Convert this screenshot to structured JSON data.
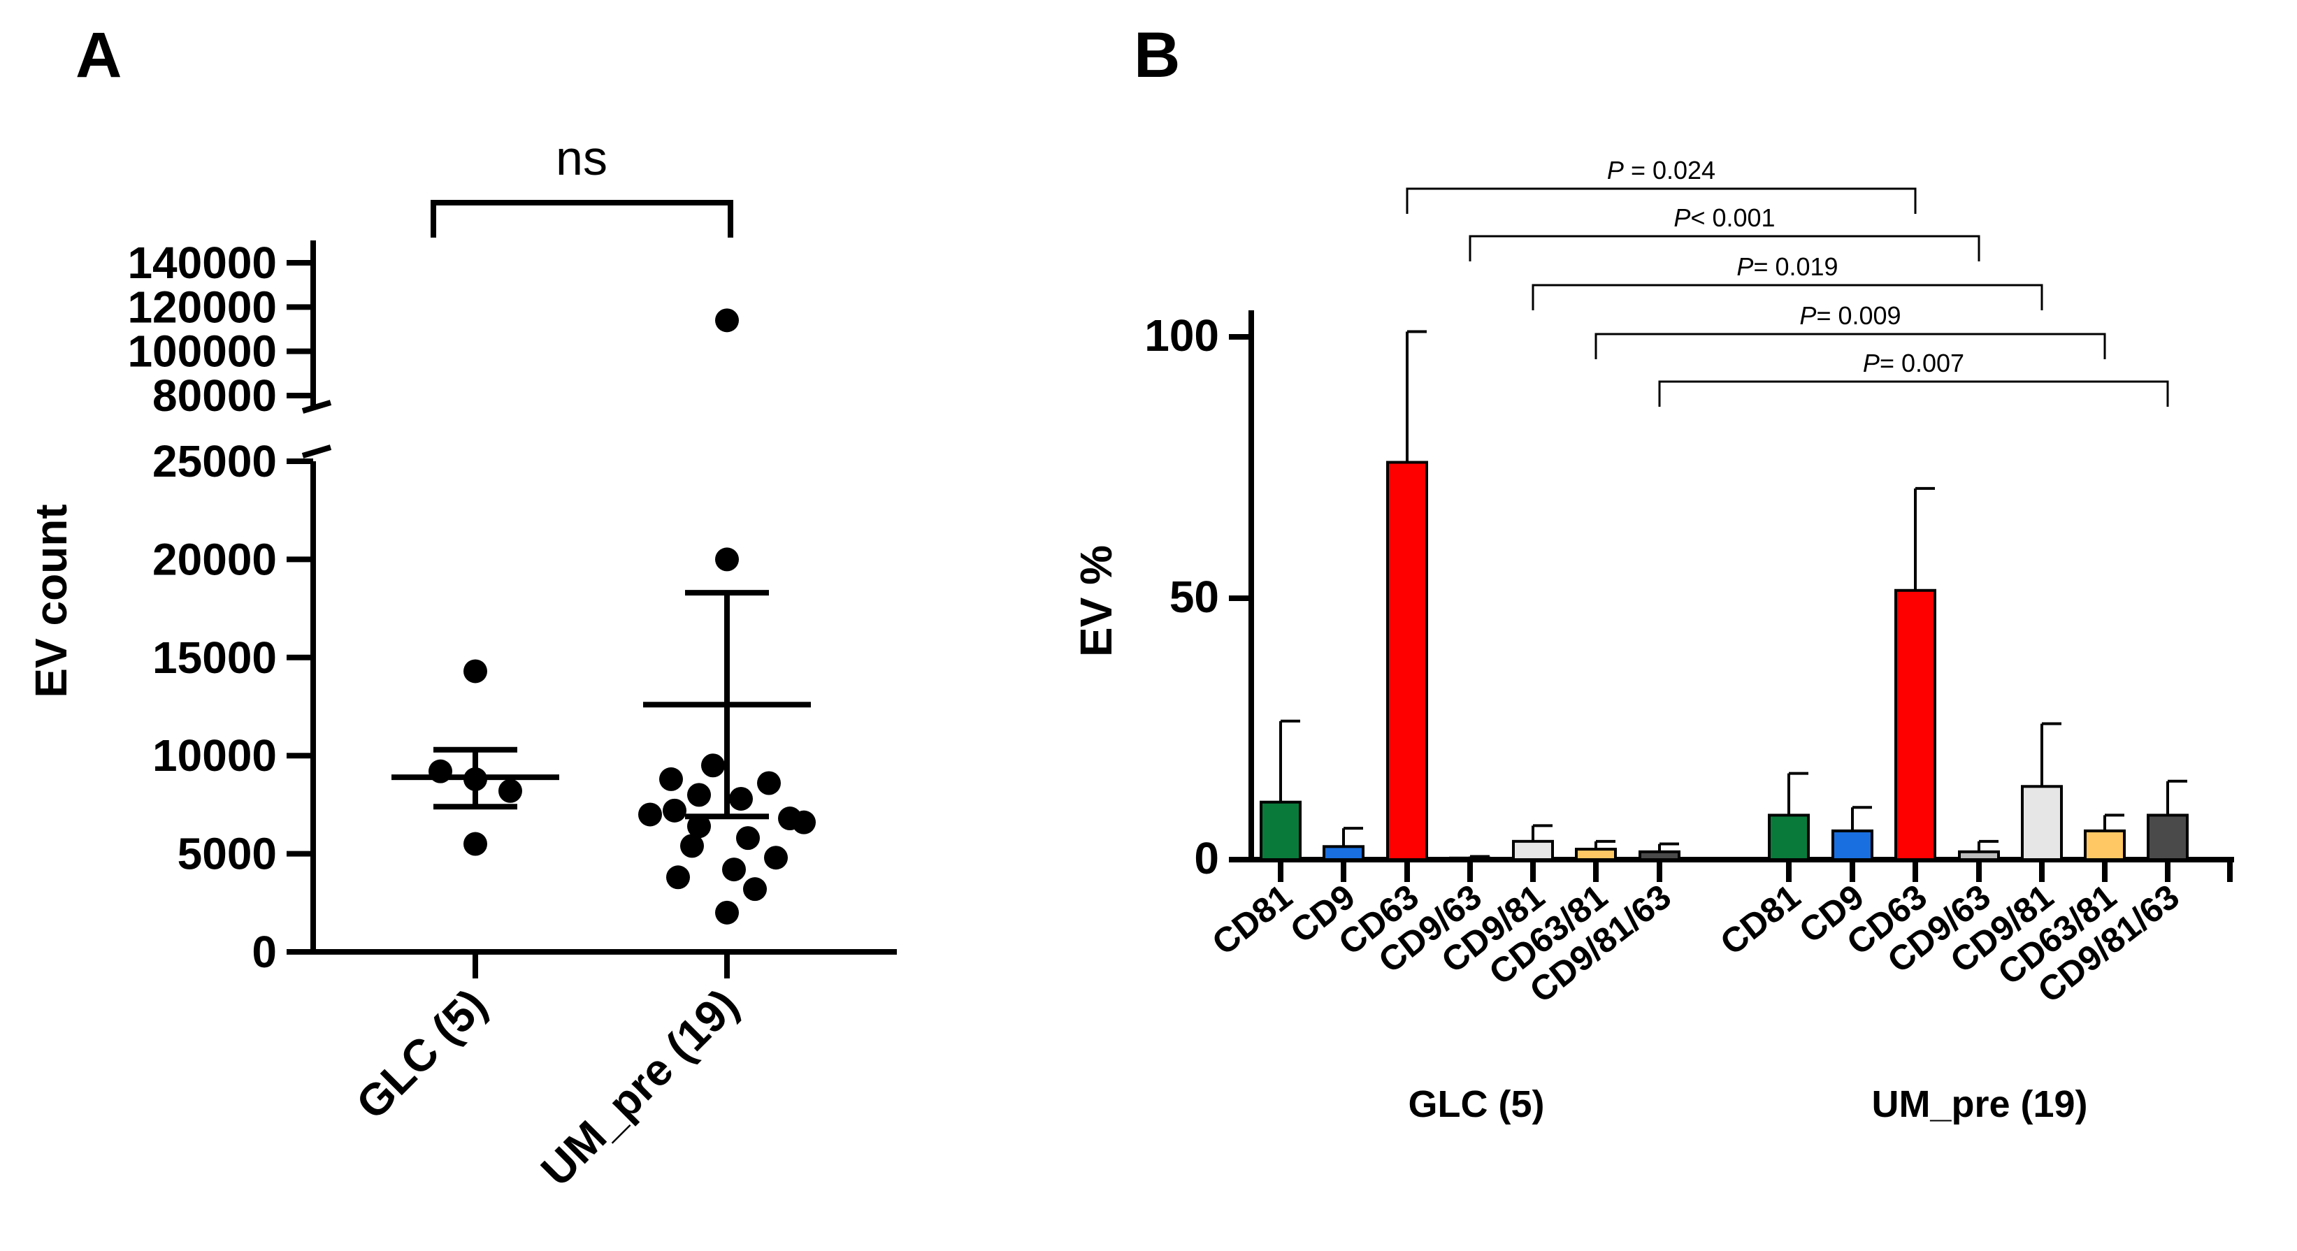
{
  "panels": {
    "a_label": "A",
    "b_label": "B"
  },
  "chart_data": [
    {
      "type": "scatter",
      "panel": "A",
      "title": "",
      "xlabel": "",
      "ylabel": "EV count",
      "y_ticks_lower": [
        "0",
        "5000",
        "10000",
        "15000",
        "20000",
        "25000"
      ],
      "y_ticks_upper": [
        "80000",
        "100000",
        "120000",
        "140000"
      ],
      "y_axis_break": [
        25000,
        80000
      ],
      "ylim": [
        0,
        140000
      ],
      "significance": {
        "label": "ns"
      },
      "groups": [
        {
          "name": "GLC (5)",
          "points": [
            14300,
            9200,
            8800,
            8200,
            5500
          ],
          "mean": 8900,
          "sem_low": 7400,
          "sem_high": 10300
        },
        {
          "name": "UM_pre (19)",
          "points": [
            114000,
            20000,
            9500,
            8800,
            8600,
            8000,
            7800,
            7200,
            7000,
            6800,
            6600,
            6400,
            5800,
            5400,
            4800,
            4200,
            3800,
            3200,
            2000
          ],
          "mean": 12600,
          "sem_low": 6900,
          "sem_high": 18300
        }
      ]
    },
    {
      "type": "bar",
      "panel": "B",
      "title": "",
      "xlabel": "",
      "ylabel": "EV %",
      "ylim": [
        0,
        100
      ],
      "y_ticks": [
        "0",
        "50",
        "100"
      ],
      "categories": [
        "CD81",
        "CD9",
        "CD63",
        "CD9/63",
        "CD9/81",
        "CD63/81",
        "CD9/81/63"
      ],
      "colors": [
        "#0a7a3a",
        "#1a6fe0",
        "#ff0000",
        "#bdbdbd",
        "#e6e6e6",
        "#ffc864",
        "#4a4a4a"
      ],
      "series": [
        {
          "name": "GLC (5)",
          "values": [
            11,
            2.5,
            76,
            0.3,
            3.5,
            2,
            1.5
          ],
          "errors": [
            15.5,
            3.5,
            25,
            0.3,
            3,
            1.5,
            1.5
          ]
        },
        {
          "name": "UM_pre (19)",
          "values": [
            8.5,
            5.5,
            51.5,
            1.5,
            14,
            5.5,
            8.5
          ],
          "errors": [
            8,
            4.5,
            19.5,
            2,
            12,
            3,
            6.5
          ]
        }
      ],
      "comparisons": [
        {
          "category": "CD63",
          "label_prefix": "P",
          "label_rest": " = 0.024"
        },
        {
          "category": "CD9/63",
          "label_prefix": "P",
          "label_rest": "< 0.001"
        },
        {
          "category": "CD9/81",
          "label_prefix": "P",
          "label_rest": "= 0.019"
        },
        {
          "category": "CD63/81",
          "label_prefix": "P",
          "label_rest": "= 0.009"
        },
        {
          "category": "CD9/81/63",
          "label_prefix": "P",
          "label_rest": "= 0.007"
        }
      ]
    }
  ]
}
